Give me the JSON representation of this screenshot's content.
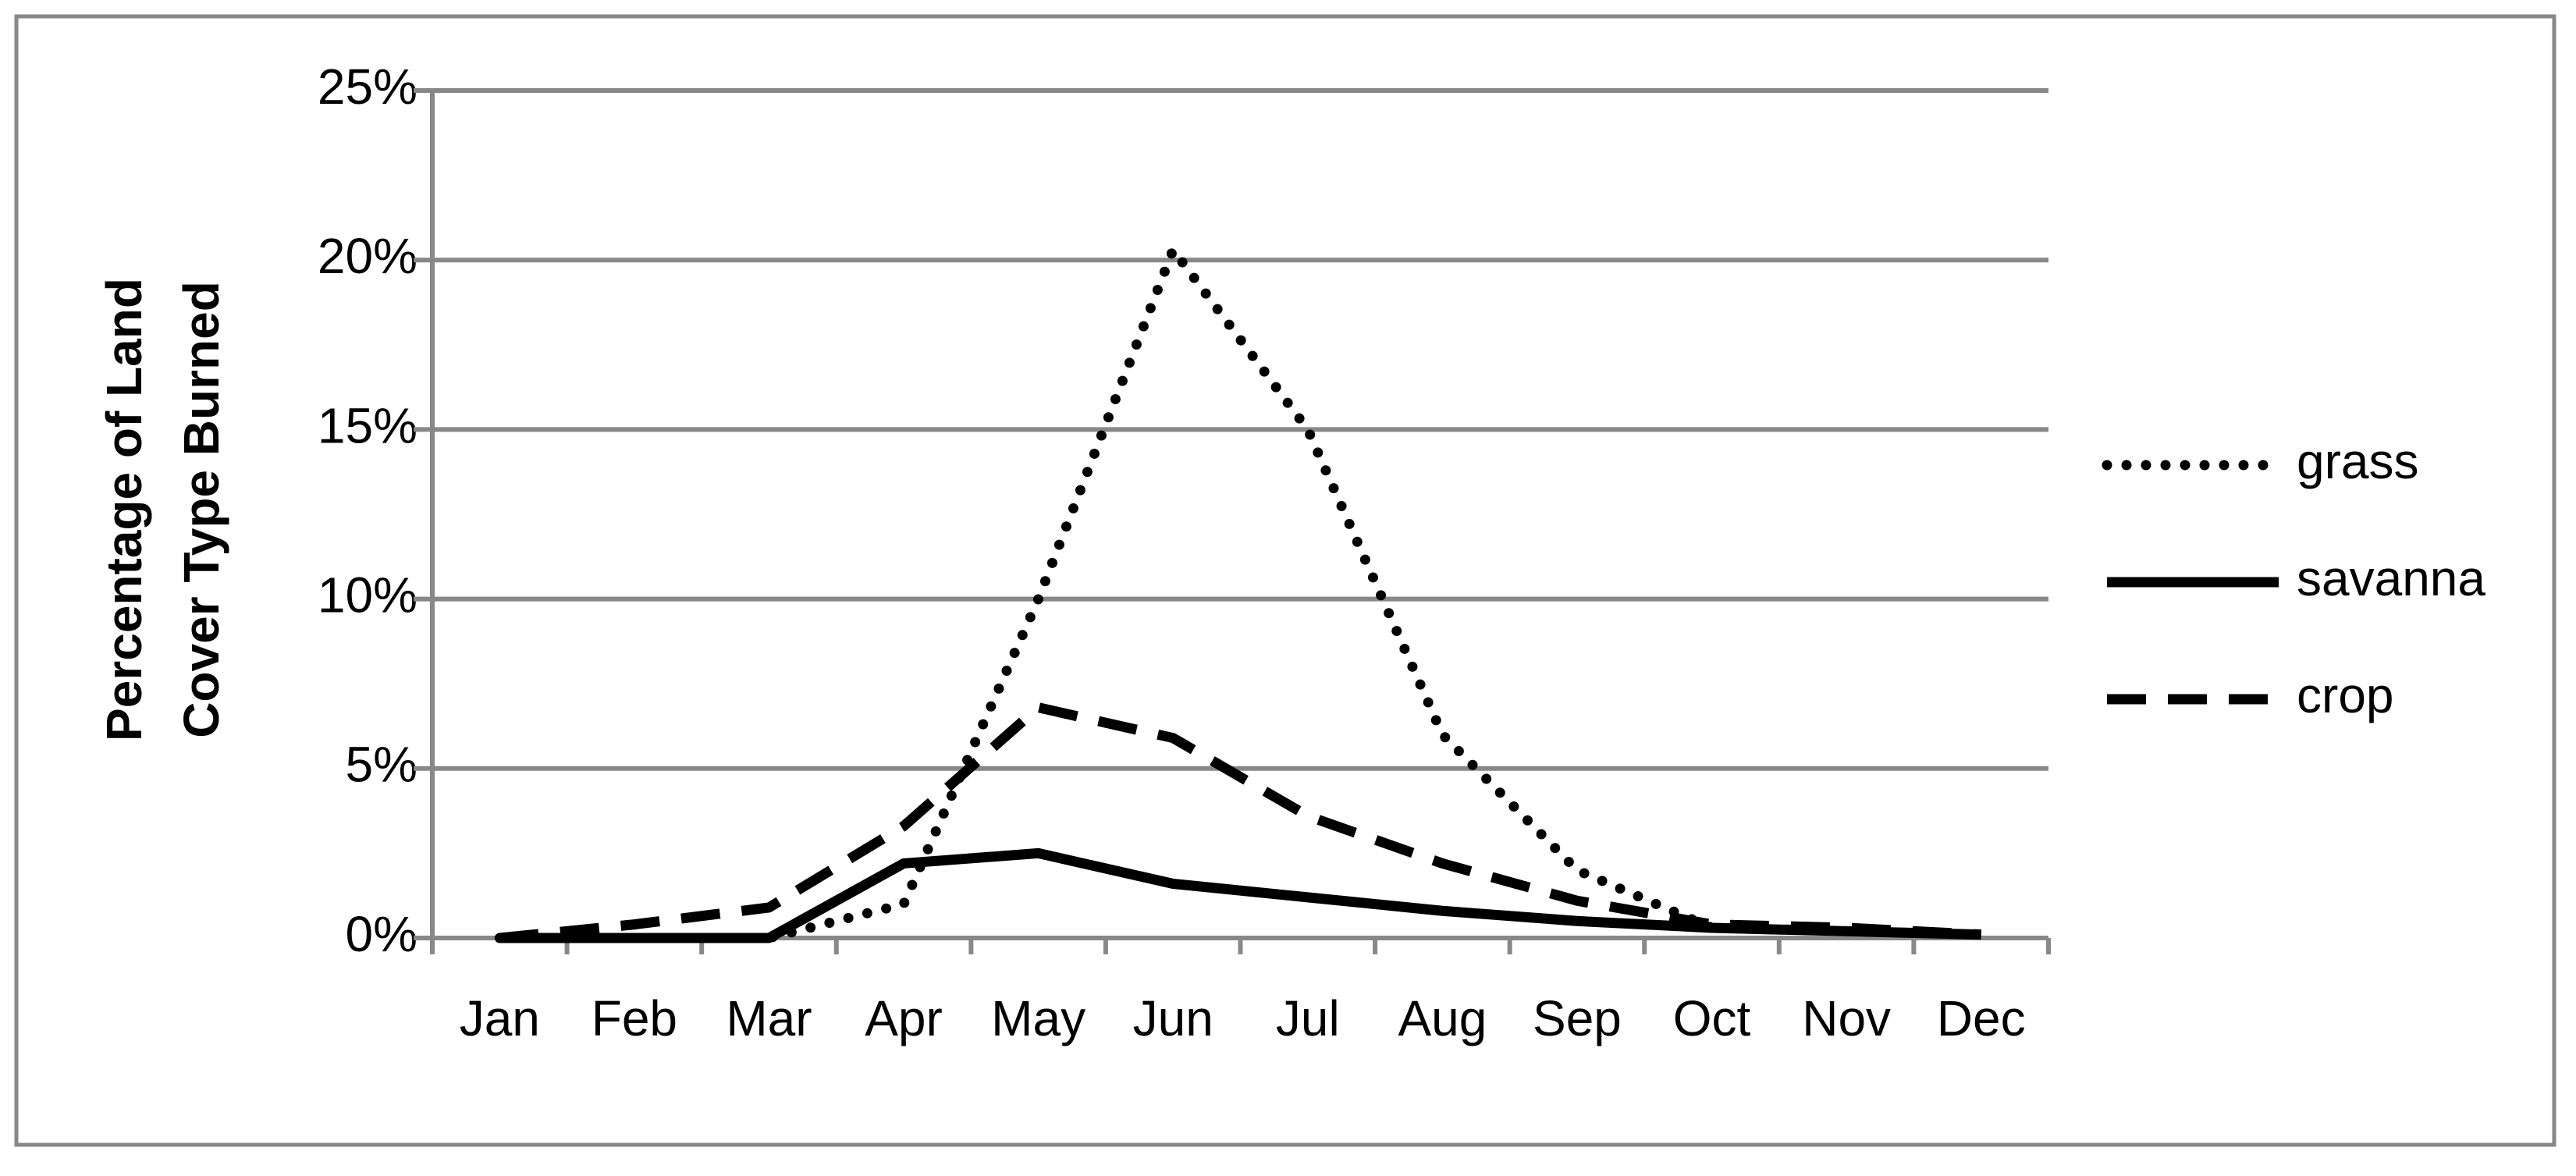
{
  "chart_data": {
    "type": "line",
    "ylabel": [
      "Percentage of Land",
      "Cover Type Burned"
    ],
    "categories": [
      "Jan",
      "Feb",
      "Mar",
      "Apr",
      "May",
      "Jun",
      "Jul",
      "Aug",
      "Sep",
      "Oct",
      "Nov",
      "Dec"
    ],
    "series": [
      {
        "name": "grass",
        "color": "#000000",
        "dash": "dotted",
        "values": [
          0,
          0,
          0,
          1,
          10,
          20.3,
          15,
          6,
          2,
          0.3,
          0.2,
          0.1
        ]
      },
      {
        "name": "savanna",
        "color": "#000000",
        "dash": "solid",
        "values": [
          0,
          0,
          0,
          2.2,
          2.5,
          1.6,
          1.2,
          0.8,
          0.5,
          0.3,
          0.2,
          0.1
        ]
      },
      {
        "name": "crop",
        "color": "#000000",
        "dash": "dashed",
        "values": [
          0,
          0.4,
          0.9,
          3.3,
          6.8,
          5.9,
          3.6,
          2.2,
          1.1,
          0.4,
          0.3,
          0.1
        ]
      }
    ],
    "ylim": [
      0,
      25
    ],
    "yticks": [
      {
        "value": 0,
        "label": "0%"
      },
      {
        "value": 5,
        "label": "5%"
      },
      {
        "value": 10,
        "label": "10%"
      },
      {
        "value": 15,
        "label": "15%"
      },
      {
        "value": 20,
        "label": "20%"
      },
      {
        "value": 25,
        "label": "25%"
      }
    ],
    "grid": true,
    "legend": "right"
  }
}
